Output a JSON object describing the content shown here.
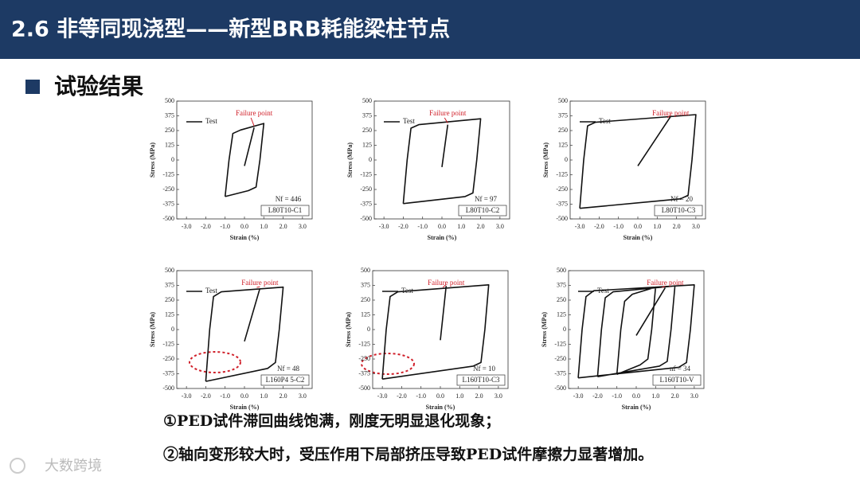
{
  "header": {
    "title": "2.6 非等同现浇型——新型BRB耗能梁柱节点"
  },
  "section": {
    "title": "试验结果"
  },
  "chart_data": [
    {
      "type": "line",
      "x_label": "Strain (%)",
      "y_label": "Stress (MPa)",
      "annotation": "Failure point",
      "specimen": "L80T10-C1",
      "life": "Nf = 446",
      "xlim": [
        -3.5,
        3.5
      ],
      "ylim": [
        -500,
        500
      ],
      "xticks": [
        {
          "value": -3,
          "label": "-3.0"
        },
        {
          "value": -2,
          "label": "-2.0"
        },
        {
          "value": -1,
          "label": "-1.0"
        },
        {
          "value": 0,
          "label": "0.0"
        },
        {
          "value": 1,
          "label": "1.0"
        },
        {
          "value": 2,
          "label": "2.0"
        },
        {
          "value": 3,
          "label": "3.0"
        }
      ],
      "yticks": [
        -500,
        -375,
        -250,
        -125,
        0,
        125,
        250,
        375,
        500
      ],
      "series": [
        {
          "name": "Test",
          "color": "#111111",
          "x": [
            -1,
            -0.8,
            -0.6,
            -0.2,
            1,
            0.8,
            0.6,
            0.2,
            -1,
            null,
            0,
            0.5
          ],
          "y": [
            -310,
            0,
            225,
            255,
            310,
            0,
            -230,
            -260,
            -310,
            null,
            -50,
            275
          ]
        }
      ]
    },
    {
      "type": "line",
      "x_label": "Strain (%)",
      "y_label": "Stress (MPa)",
      "annotation": "Failure point",
      "specimen": "L80T10-C2",
      "life": "Nf = 97",
      "xlim": [
        -3.5,
        3.5
      ],
      "ylim": [
        -500,
        500
      ],
      "xticks": [
        {
          "value": -3,
          "label": "-3.0"
        },
        {
          "value": -2,
          "label": "-2.0"
        },
        {
          "value": -1,
          "label": "-1.0"
        },
        {
          "value": 0,
          "label": "0.0"
        },
        {
          "value": 1,
          "label": "1.0"
        },
        {
          "value": 2,
          "label": "2.0"
        },
        {
          "value": 3,
          "label": "3.0"
        }
      ],
      "yticks": [
        -500,
        -375,
        -250,
        -125,
        0,
        125,
        250,
        375,
        500
      ],
      "series": [
        {
          "name": "Test",
          "color": "#111111",
          "x": [
            -2,
            -1.8,
            -1.6,
            -1.2,
            2,
            1.8,
            1.6,
            1.2,
            -2,
            null,
            0,
            0.3
          ],
          "y": [
            -370,
            0,
            270,
            300,
            350,
            0,
            -280,
            -310,
            -370,
            null,
            -60,
            300
          ]
        }
      ]
    },
    {
      "type": "line",
      "x_label": "Strain (%)",
      "y_label": "Stress (MPa)",
      "annotation": "Failure point",
      "specimen": "L80T10-C3",
      "life": "Nf = 20",
      "xlim": [
        -3.5,
        3.5
      ],
      "ylim": [
        -500,
        500
      ],
      "xticks": [
        {
          "value": -3,
          "label": "-3.0"
        },
        {
          "value": -2,
          "label": "-2.0"
        },
        {
          "value": -1,
          "label": "-1.0"
        },
        {
          "value": 0,
          "label": "0.0"
        },
        {
          "value": 1,
          "label": "1.0"
        },
        {
          "value": 2,
          "label": "2.0"
        },
        {
          "value": 3,
          "label": "3.0"
        }
      ],
      "yticks": [
        -500,
        -375,
        -250,
        -125,
        0,
        125,
        250,
        375,
        500
      ],
      "series": [
        {
          "name": "Test",
          "color": "#111111",
          "x": [
            -3,
            -2.8,
            -2.6,
            -2.2,
            3,
            2.8,
            2.6,
            2.2,
            -3,
            null,
            0,
            1.7
          ],
          "y": [
            -410,
            0,
            290,
            320,
            385,
            0,
            -300,
            -330,
            -410,
            null,
            -50,
            370
          ]
        }
      ]
    },
    {
      "type": "line",
      "x_label": "Strain (%)",
      "y_label": "Stress (MPa)",
      "annotation": "Failure point",
      "specimen": "L160P4 5-C2",
      "life": "Nf = 48",
      "xlim": [
        -3.5,
        3.5
      ],
      "ylim": [
        -500,
        500
      ],
      "xticks": [
        {
          "value": -3,
          "label": "-3.0"
        },
        {
          "value": -2,
          "label": "-2.0"
        },
        {
          "value": -1,
          "label": "-1.0"
        },
        {
          "value": 0,
          "label": "0.0"
        },
        {
          "value": 1,
          "label": "1.0"
        },
        {
          "value": 2,
          "label": "2.0"
        },
        {
          "value": 3,
          "label": "3.0"
        }
      ],
      "yticks": [
        -500,
        -375,
        -250,
        -125,
        0,
        125,
        250,
        375,
        500
      ],
      "series": [
        {
          "name": "Test",
          "color": "#111111",
          "x": [
            -2,
            -1.8,
            -1.6,
            -1.2,
            2,
            1.8,
            1.6,
            1.2,
            -2,
            null,
            0,
            0.8
          ],
          "y": [
            -440,
            0,
            280,
            320,
            360,
            0,
            -280,
            -330,
            -440,
            null,
            -100,
            350
          ]
        }
      ]
    },
    {
      "type": "line",
      "x_label": "Strain (%)",
      "y_label": "Stress (MPa)",
      "annotation": "Failure point",
      "specimen": "L160T10-C3",
      "life": "Nf = 10",
      "xlim": [
        -3.5,
        3.5
      ],
      "ylim": [
        -500,
        500
      ],
      "xticks": [
        {
          "value": -3,
          "label": "-3.0"
        },
        {
          "value": -2,
          "label": "-2.0"
        },
        {
          "value": -1,
          "label": "-1.0"
        },
        {
          "value": 0,
          "label": "0.0"
        },
        {
          "value": 1,
          "label": "1.0"
        },
        {
          "value": 2,
          "label": "2.0"
        },
        {
          "value": 3,
          "label": "3.0"
        }
      ],
      "yticks": [
        -500,
        -375,
        -250,
        -125,
        0,
        125,
        250,
        375,
        500
      ],
      "series": [
        {
          "name": "Test",
          "color": "#111111",
          "x": [
            -3,
            -2.8,
            -2.6,
            -2.2,
            2.5,
            2.3,
            2.1,
            1.7,
            -3,
            null,
            0,
            0.3
          ],
          "y": [
            -420,
            0,
            280,
            320,
            380,
            0,
            -280,
            -310,
            -420,
            null,
            -90,
            370
          ]
        }
      ]
    },
    {
      "type": "line",
      "x_label": "Strain (%)",
      "y_label": "Stress (MPa)",
      "annotation": "Failure point",
      "specimen": "L160T10-V",
      "life": "nf = 34",
      "xlim": [
        -3.5,
        3.5
      ],
      "ylim": [
        -500,
        500
      ],
      "xticks": [
        {
          "value": -3,
          "label": "-3.0"
        },
        {
          "value": -2,
          "label": "-2.0"
        },
        {
          "value": -1,
          "label": "-1.0"
        },
        {
          "value": 0,
          "label": "0.0"
        },
        {
          "value": 1,
          "label": "1.0"
        },
        {
          "value": 2,
          "label": "2.0"
        },
        {
          "value": 3,
          "label": "3.0"
        }
      ],
      "yticks": [
        -500,
        -375,
        -250,
        -125,
        0,
        125,
        250,
        375,
        500
      ],
      "series": [
        {
          "name": "Test",
          "color": "#111111",
          "x": [
            -3,
            -2.8,
            -2.6,
            -2.2,
            3,
            2.8,
            2.6,
            2.2,
            -3,
            null,
            -2,
            -1.8,
            -1.6,
            -1.2,
            2,
            1.8,
            1.6,
            1.2,
            -2,
            null,
            -1,
            -0.8,
            -0.6,
            -0.2,
            1,
            0.8,
            0.6,
            0.2,
            -1,
            null,
            0,
            1.5
          ],
          "y": [
            -410,
            0,
            280,
            330,
            380,
            0,
            -280,
            -320,
            -410,
            null,
            -400,
            0,
            270,
            320,
            370,
            0,
            -270,
            -310,
            -400,
            null,
            -380,
            0,
            240,
            300,
            360,
            0,
            -250,
            -300,
            -380,
            null,
            -50,
            355
          ]
        }
      ]
    }
  ],
  "notes": [
    "①PED试件滞回曲线饱满，刚度无明显退化现象；",
    "②轴向变形较大时，受压作用下局部挤压导致PED试件摩擦力显著增加。"
  ],
  "watermark": "大数跨境"
}
